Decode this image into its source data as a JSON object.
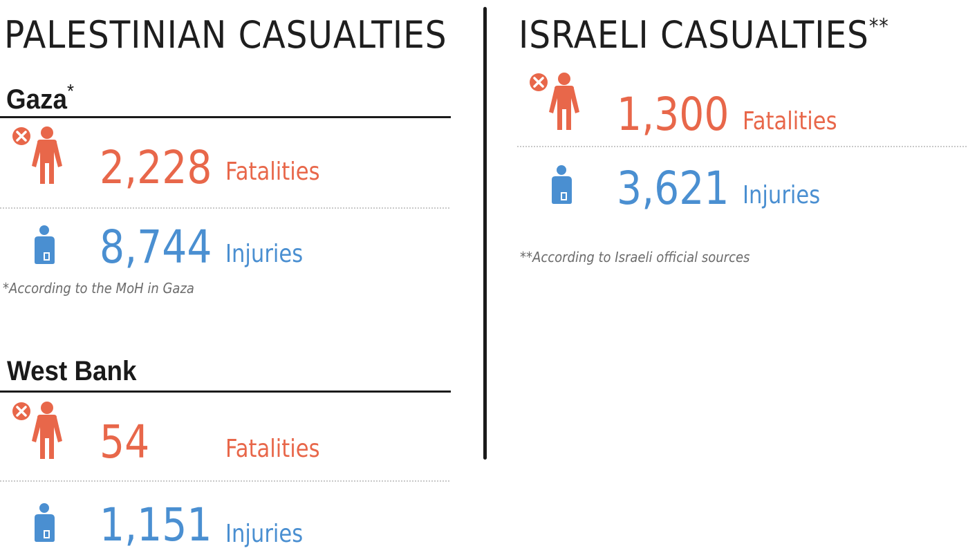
{
  "palestinian": {
    "title": "PALESTINIAN CASUALTIES",
    "gaza": {
      "name": "Gaza",
      "mark": "*",
      "fatalities_value": "2,228",
      "fatalities_label": "Fatalities",
      "injuries_value": "8,744",
      "injuries_label": "Injuries",
      "note": "*According to the MoH in Gaza"
    },
    "west_bank": {
      "name": "West Bank",
      "fatalities_value": "54",
      "fatalities_label": "Fatalities",
      "injuries_value": "1,151",
      "injuries_label": "Injuries"
    }
  },
  "israeli": {
    "title": "ISRAELI CASUALTIES",
    "mark": "**",
    "fatalities_value": "1,300",
    "fatalities_label": "Fatalities",
    "injuries_value": "3,621",
    "injuries_label": "Injuries",
    "note": "**According to Israeli official sources"
  },
  "icons": {
    "fatality": "person-with-x-icon",
    "injury": "injured-person-icon"
  },
  "colors": {
    "fatality": "#e8674a",
    "injury": "#4a8fd1",
    "text": "#1a1a1a"
  }
}
